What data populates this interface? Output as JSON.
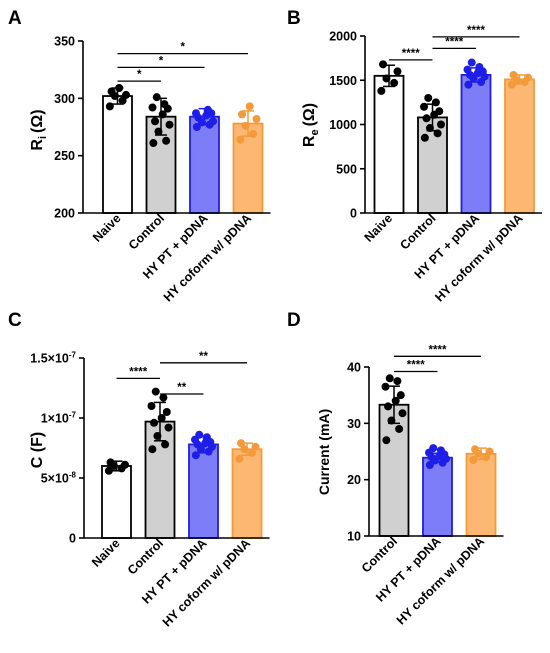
{
  "chart_data": [
    {
      "type": "bar",
      "panel": "A",
      "ylabel_main": "R",
      "ylabel_sub": "i",
      "ylabel_unit": "(Ω)",
      "ylim": [
        200,
        350
      ],
      "yticks": [
        200,
        250,
        300,
        350
      ],
      "ytick_labels": [
        "200",
        "250",
        "300",
        "350"
      ],
      "categories": [
        "Naive",
        "Control",
        "HY PT + pDNA",
        "HY coform w/ pDNA"
      ],
      "values": [
        302,
        284,
        284,
        278
      ],
      "errors": [
        7,
        16,
        7,
        11
      ],
      "points": [
        [
          293,
          298,
          302,
          303,
          306,
          309
        ],
        [
          261,
          263,
          271,
          277,
          280,
          286,
          291,
          292,
          295,
          301
        ],
        [
          275,
          277,
          279,
          280,
          283,
          285,
          287,
          287,
          290
        ],
        [
          264,
          269,
          276,
          282,
          286,
          293
        ]
      ],
      "colors": [
        "#ffffff",
        "#d0d0d0",
        "#7d7df7",
        "#fcb873"
      ],
      "edges": [
        "#000000",
        "#000000",
        "#1e1edc",
        "#f39a3a"
      ],
      "point_colors": [
        "#000000",
        "#000000",
        "#1e1ee6",
        "#f39a3a"
      ],
      "significance": [
        {
          "from": 0,
          "to": 1,
          "label": "*",
          "y": 315
        },
        {
          "from": 0,
          "to": 2,
          "label": "*",
          "y": 327
        },
        {
          "from": 0,
          "to": 3,
          "label": "*",
          "y": 339
        }
      ]
    },
    {
      "type": "bar",
      "panel": "B",
      "ylabel_main": "R",
      "ylabel_sub": "e",
      "ylabel_unit": "(Ω)",
      "ylim": [
        0,
        2000
      ],
      "yticks": [
        0,
        500,
        1000,
        1500,
        2000
      ],
      "ytick_labels": [
        "0",
        "500",
        "1000",
        "1500",
        "2000"
      ],
      "categories": [
        "Naive",
        "Control",
        "HY PT + pDNA",
        "HY coform w/ pDNA"
      ],
      "values": [
        1550,
        1080,
        1560,
        1510
      ],
      "errors": [
        120,
        150,
        80,
        50
      ],
      "points": [
        [
          1380,
          1470,
          1520,
          1600,
          1680
        ],
        [
          850,
          900,
          960,
          1000,
          1070,
          1110,
          1150,
          1200,
          1250,
          1300
        ],
        [
          1450,
          1480,
          1520,
          1540,
          1560,
          1580,
          1600,
          1620,
          1650,
          1700
        ],
        [
          1450,
          1480,
          1500,
          1530,
          1560
        ]
      ],
      "colors": [
        "#ffffff",
        "#d0d0d0",
        "#7d7df7",
        "#fcb873"
      ],
      "edges": [
        "#000000",
        "#000000",
        "#1e1edc",
        "#f39a3a"
      ],
      "point_colors": [
        "#000000",
        "#000000",
        "#1e1ee6",
        "#f39a3a"
      ],
      "significance": [
        {
          "from": 0,
          "to": 1,
          "label": "****",
          "y": 1730
        },
        {
          "from": 1,
          "to": 2,
          "label": "****",
          "y": 1860
        },
        {
          "from": 1,
          "to": 3,
          "label": "****",
          "y": 1990
        }
      ]
    },
    {
      "type": "bar",
      "panel": "C",
      "ylabel_text": "C (F)",
      "ylim": [
        0,
        1.5e-07
      ],
      "yticks": [
        0,
        5e-08,
        1e-07,
        1.5e-07
      ],
      "ytick_labels": [
        "0",
        "5×10",
        "1×10",
        "1.5×10"
      ],
      "ytick_exps": [
        "",
        "-8",
        "-7",
        "-7"
      ],
      "categories": [
        "Naive",
        "Control",
        "HY PT + pDNA",
        "HY coform w/ pDNA"
      ],
      "values": [
        6e-08,
        9.7e-08,
        7.8e-08,
        7.4e-08
      ],
      "errors": [
        4e-09,
        1.6e-08,
        7e-09,
        5e-09
      ],
      "points": [
        [
          5.6e-08,
          5.8e-08,
          6e-08,
          6.1e-08,
          6.3e-08
        ],
        [
          7.4e-08,
          7.8e-08,
          8.5e-08,
          9.2e-08,
          9.6e-08,
          1e-07,
          1.05e-07,
          1.1e-07,
          1.17e-07,
          1.22e-07
        ],
        [
          6.9e-08,
          7.2e-08,
          7.4e-08,
          7.6e-08,
          7.8e-08,
          7.9e-08,
          8e-08,
          8.2e-08,
          8.4e-08,
          8.6e-08
        ],
        [
          6.6e-08,
          7.1e-08,
          7.4e-08,
          7.6e-08,
          7.9e-08
        ]
      ],
      "colors": [
        "#ffffff",
        "#d0d0d0",
        "#7d7df7",
        "#fcb873"
      ],
      "edges": [
        "#000000",
        "#000000",
        "#1e1edc",
        "#f39a3a"
      ],
      "point_colors": [
        "#000000",
        "#000000",
        "#1e1ee6",
        "#f39a3a"
      ],
      "significance": [
        {
          "from": 0,
          "to": 1,
          "label": "****",
          "y": 1.33e-07
        },
        {
          "from": 1,
          "to": 2,
          "label": "**",
          "y": 1.2e-07
        },
        {
          "from": 1,
          "to": 3,
          "label": "**",
          "y": 1.46e-07
        }
      ]
    },
    {
      "type": "bar",
      "panel": "D",
      "ylabel_text": "Current (mA)",
      "ylim": [
        10,
        40
      ],
      "yticks": [
        10,
        20,
        30,
        40
      ],
      "ytick_labels": [
        "10",
        "20",
        "30",
        "40"
      ],
      "categories": [
        "Control",
        "HY PT + pDNA",
        "HY coform w/ pDNA"
      ],
      "values": [
        33.3,
        23.9,
        24.6
      ],
      "errors": [
        3.3,
        0.8,
        1.0
      ],
      "points": [
        [
          27.0,
          29.0,
          30.5,
          31.8,
          33.0,
          34.0,
          35.0,
          36.5,
          37.5,
          38.0
        ],
        [
          22.6,
          23.0,
          23.4,
          23.7,
          24.0,
          24.2,
          24.5,
          24.8,
          25.2,
          25.6
        ],
        [
          23.5,
          24.0,
          24.6,
          25.0,
          25.4
        ]
      ],
      "colors": [
        "#d0d0d0",
        "#7d7df7",
        "#fcb873"
      ],
      "edges": [
        "#000000",
        "#1e1edc",
        "#f39a3a"
      ],
      "point_colors": [
        "#000000",
        "#1e1ee6",
        "#f39a3a"
      ],
      "significance": [
        {
          "from": 0,
          "to": 1,
          "label": "****",
          "y": 39.2
        },
        {
          "from": 0,
          "to": 2,
          "label": "****",
          "y": 41.9
        }
      ]
    }
  ]
}
